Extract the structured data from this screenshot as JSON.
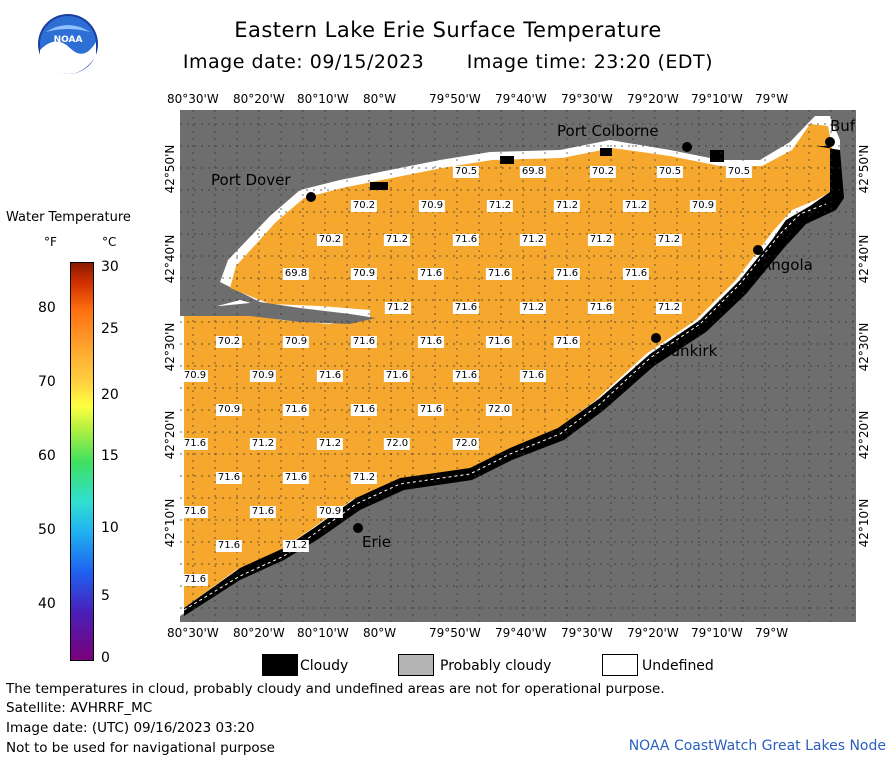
{
  "title": "Eastern Lake Erie Surface Temperature",
  "image_date": "Image date: 09/15/2023",
  "image_time": "Image time: 23:20 (EDT)",
  "lon_labels": [
    "80°30'W",
    "80°20'W",
    "80°10'W",
    "80°W",
    "79°50'W",
    "79°40'W",
    "79°30'W",
    "79°20'W",
    "79°10'W",
    "79°W"
  ],
  "lat_labels": [
    "42°50'N",
    "42°40'N",
    "42°30'N",
    "42°20'N",
    "42°10'N"
  ],
  "cities": {
    "port_dover": "Port Dover",
    "port_colborne": "Port Colborne",
    "buffalo": "Buf",
    "angola": "Angola",
    "dunkirk": "Dunkirk",
    "erie": "Erie"
  },
  "temps": [
    "70.5",
    "69.8",
    "70.2",
    "70.5",
    "70.5",
    "70.2",
    "70.9",
    "71.2",
    "71.2",
    "71.2",
    "70.9",
    "70.2",
    "71.2",
    "71.6",
    "71.2",
    "71.2",
    "71.2",
    "69.8",
    "70.9",
    "71.6",
    "71.6",
    "71.6",
    "71.6",
    "71.2",
    "71.6",
    "71.2",
    "71.6",
    "71.2",
    "70.2",
    "70.9",
    "71.6",
    "71.6",
    "71.6",
    "71.6",
    "70.9",
    "70.9",
    "71.6",
    "71.6",
    "71.6",
    "71.6",
    "70.9",
    "71.6",
    "71.6",
    "71.6",
    "72.0",
    "71.6",
    "71.2",
    "71.2",
    "72.0",
    "72.0",
    "71.6",
    "71.6",
    "71.2",
    "71.6",
    "71.6",
    "70.9",
    "71.6",
    "71.2",
    "71.6"
  ],
  "legend": {
    "title": "Water Temperature",
    "unit_f": "°F",
    "unit_c": "°C",
    "f_ticks": [
      "80",
      "70",
      "60",
      "50",
      "40"
    ],
    "c_ticks": [
      "30",
      "25",
      "20",
      "15",
      "10",
      "5",
      "0"
    ]
  },
  "key": {
    "cloudy": "Cloudy",
    "probably_cloudy": "Probably cloudy",
    "undefined": "Undefined"
  },
  "footer": {
    "note": "The temperatures in cloud, probably cloudy and undefined areas are not for operational purpose.",
    "satellite": "Satellite: AVHRRF_MC",
    "utc_date": "Image date: (UTC) 09/16/2023  03:20",
    "nav": "Not to be used for navigational purpose",
    "credit": "NOAA CoastWatch Great Lakes Node"
  },
  "colors": {
    "land": "#6e6e6e",
    "water": "#f6a72e",
    "cloud": "#000000",
    "undefined": "#ffffff",
    "probably_cloudy": "#b4b4b4",
    "credit": "#2a5fc0"
  }
}
